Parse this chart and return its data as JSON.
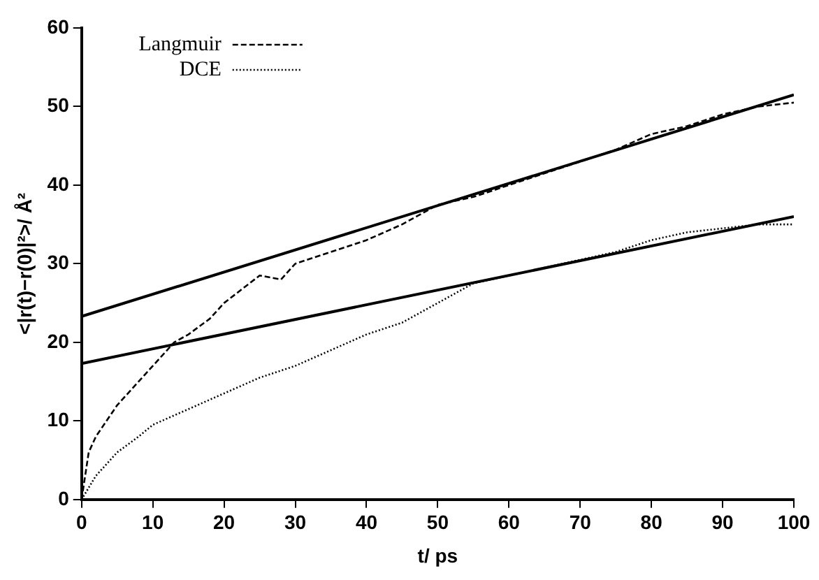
{
  "chart_data": {
    "type": "line",
    "xlabel": "t/ ps",
    "ylabel": "<|r(t)−r(0)|²>/ Å²",
    "xlim": [
      0,
      100
    ],
    "xticks": [
      0,
      10,
      20,
      30,
      40,
      50,
      60,
      70,
      80,
      90,
      100
    ],
    "ylim": [
      0,
      60
    ],
    "yticks": [
      0,
      10,
      20,
      30,
      40,
      50,
      60
    ],
    "legend": "top left",
    "marker": "none",
    "grid": false,
    "series": [
      {
        "name": "Langmuir",
        "color": "#000000",
        "line_style": "dashed",
        "x": [
          0,
          1,
          2,
          5,
          8,
          10,
          13,
          15,
          18,
          20,
          25,
          28,
          30,
          35,
          40,
          45,
          50,
          55,
          60,
          65,
          70,
          75,
          80,
          85,
          90,
          95,
          100
        ],
        "values": [
          0,
          6,
          8,
          12,
          15,
          17,
          20,
          21,
          23,
          25,
          28.5,
          28,
          30,
          31.5,
          33,
          35,
          37.5,
          38.5,
          40,
          41.5,
          43,
          44.5,
          46.5,
          47.5,
          49,
          50,
          50.5
        ]
      },
      {
        "name": "DCE",
        "color": "#000000",
        "line_style": "dotted",
        "x": [
          0,
          2,
          5,
          8,
          10,
          15,
          20,
          25,
          30,
          35,
          40,
          45,
          50,
          55,
          60,
          65,
          70,
          75,
          80,
          85,
          90,
          95,
          100
        ],
        "values": [
          0,
          3,
          6,
          8,
          9.5,
          11.5,
          13.5,
          15.5,
          17,
          19,
          21,
          22.5,
          25,
          27.5,
          28.5,
          29.5,
          30.5,
          31.5,
          33,
          34,
          34.5,
          35,
          35
        ]
      },
      {
        "color": "#000000",
        "line_style": "solid",
        "x": [
          0,
          100
        ],
        "values": [
          23.3,
          51.5
        ]
      },
      {
        "color": "#000000",
        "line_style": "solid",
        "x": [
          0,
          100
        ],
        "values": [
          17.3,
          36
        ]
      }
    ]
  }
}
